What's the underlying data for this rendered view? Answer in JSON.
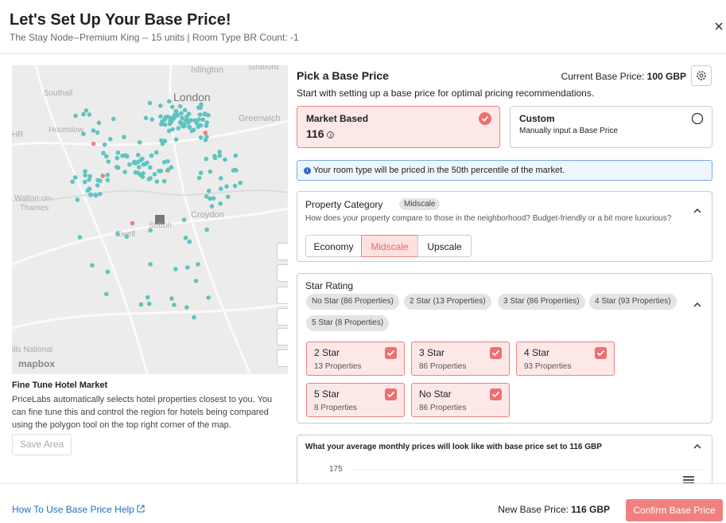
{
  "header": {
    "title": "Let's Set Up Your Base Price!",
    "subtitle": "The Stay Node--Premium King -- 15 units | Room Type BR Count: -1"
  },
  "map": {
    "labels": [
      "Islington",
      "Stratford",
      "London",
      "Southall",
      "Greenwich",
      "Hounslow",
      "HR",
      "Walton-on-",
      "Thames",
      "Croydon",
      "Ewell",
      "Sutton",
      "ills National",
      "mapbox"
    ]
  },
  "fine_tune": {
    "title": "Fine Tune Hotel Market",
    "text": "PriceLabs automatically selects hotel properties closest to you. You can fine tune this and control the region for hotels being compared using the polygon tool on the top right corner of the map.",
    "button": "Save Area"
  },
  "pick": {
    "title": "Pick a Base Price",
    "current_label": "Current Base Price:",
    "current_value": "100 GBP",
    "description": "Start with setting up a base price for optimal pricing recommendations."
  },
  "options": {
    "market": {
      "title": "Market Based",
      "value": "116"
    },
    "custom": {
      "title": "Custom",
      "description": "Manually input a Base Price"
    }
  },
  "info": "Your room type will be priced in the 50th percentile of the market.",
  "property": {
    "title": "Property Category",
    "badge": "Midscale",
    "question": "How does your property compare to those in the neighborhood? Budget-friendly or a bit more luxurious?",
    "options": [
      "Economy",
      "Midscale",
      "Upscale"
    ]
  },
  "star": {
    "title": "Star Rating",
    "chips": [
      "No Star (86 Properties)",
      "2 Star (13 Properties)",
      "3 Star (86 Properties)",
      "4 Star (93 Properties)",
      "5 Star (8 Properties)"
    ],
    "cards": [
      {
        "name": "2 Star",
        "count": "13 Properties"
      },
      {
        "name": "3 Star",
        "count": "86 Properties"
      },
      {
        "name": "4 Star",
        "count": "93 Properties"
      },
      {
        "name": "5 Star",
        "count": "8 Properties"
      },
      {
        "name": "No Star",
        "count": "86 Properties"
      }
    ]
  },
  "preview": {
    "title": "What your average monthly prices will look like with base price set to 116 GBP",
    "y_tick": "175"
  },
  "footer": {
    "help": "How To Use Base Price Help",
    "new_label": "New Base Price:",
    "new_value": "116 GBP",
    "confirm": "Confirm Base Price"
  }
}
